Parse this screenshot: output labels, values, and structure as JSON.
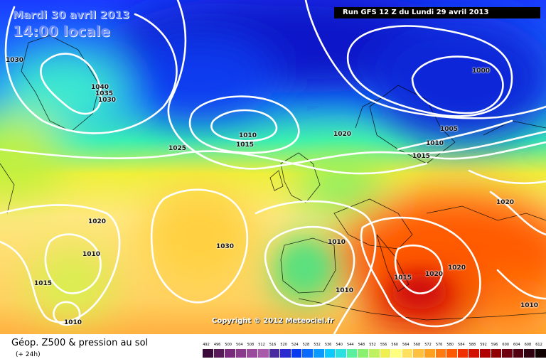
{
  "header": {
    "date": "Mardi 30 avril 2013",
    "time": "14:00 locale",
    "run": "Run GFS 12 Z du Lundi 29 avril 2013"
  },
  "copyright": "Copyright © 2012 Meteociel.fr",
  "footer": {
    "title": "Géop. Z500 & pression au sol",
    "subtitle": "(+ 24h)"
  },
  "isobar_labels": [
    "1030",
    "1040",
    "1035",
    "1030",
    "1010",
    "1015",
    "1025",
    "1020",
    "1000",
    "1005",
    "1010",
    "1015",
    "1020",
    "1020",
    "1010",
    "1030",
    "1010",
    "1010",
    "1015",
    "1015",
    "1020",
    "1020",
    "1010",
    "1010"
  ],
  "legend": {
    "values": [
      "492",
      "496",
      "500",
      "504",
      "508",
      "512",
      "516",
      "520",
      "524",
      "528",
      "532",
      "536",
      "540",
      "544",
      "548",
      "552",
      "556",
      "560",
      "564",
      "568",
      "572",
      "576",
      "580",
      "584",
      "588",
      "592",
      "596",
      "600",
      "604",
      "608",
      "612"
    ],
    "colors": [
      "#3a0a3a",
      "#5a1a5a",
      "#7a2a7a",
      "#8a3a8a",
      "#9a4a9a",
      "#aa5aaa",
      "#4a2aa0",
      "#2a2ad0",
      "#0a3af0",
      "#0a6aff",
      "#0a9aff",
      "#0acaff",
      "#2ae0e0",
      "#5af0a0",
      "#8af070",
      "#bff060",
      "#eff050",
      "#ffff80",
      "#ffe060",
      "#ffc040",
      "#ffa020",
      "#ff7a10",
      "#ff5a00",
      "#f03000",
      "#d01000",
      "#b00000",
      "#900000",
      "#700010",
      "#500010",
      "#300010",
      "#100000"
    ]
  }
}
